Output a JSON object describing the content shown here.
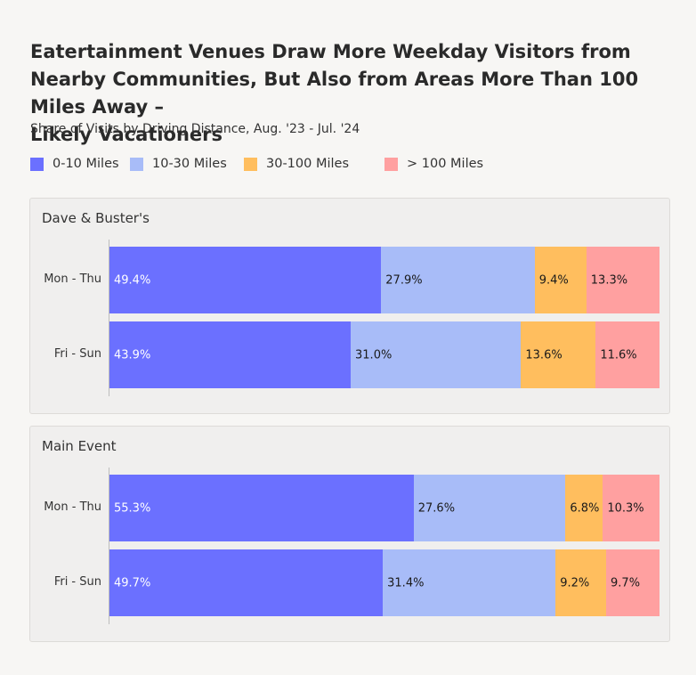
{
  "title": "Eatertainment Venues Draw More Weekday Visitors from Nearby Communities, But Also from Areas More Than 100 Miles Away –\n Likely Vacationers",
  "subtitle": "Share of Visits by Driving Distance, Aug. '23 - Jul. '24",
  "colors": {
    "0-10 Miles": "#6b70ff",
    "10-30 Miles": "#a8bcf8",
    "30-100 Miles": "#ffbe5e",
    "> 100 Miles": "#ffa0a0"
  },
  "chart_data": {
    "type": "bar",
    "stacked": true,
    "orientation": "horizontal",
    "legend": {
      "placement": "top",
      "entries": [
        "0-10 Miles",
        "10-30 Miles",
        "30-100 Miles",
        "> 100 Miles"
      ]
    },
    "panels": [
      {
        "title": "Dave & Buster's",
        "categories": [
          "Mon - Thu",
          "Fri - Sun"
        ],
        "series": [
          {
            "name": "0-10 Miles",
            "values": [
              49.4,
              43.9
            ],
            "labels": [
              "49.4%",
              "43.9%"
            ]
          },
          {
            "name": "10-30 Miles",
            "values": [
              27.9,
              31.0
            ],
            "labels": [
              "27.9%",
              "31.0%"
            ]
          },
          {
            "name": "30-100 Miles",
            "values": [
              9.4,
              13.6
            ],
            "labels": [
              "9.4%",
              "13.6%"
            ]
          },
          {
            "name": "> 100 Miles",
            "values": [
              13.3,
              11.6
            ],
            "labels": [
              "13.3%",
              "11.6%"
            ]
          }
        ]
      },
      {
        "title": "Main Event",
        "categories": [
          "Mon - Thu",
          "Fri - Sun"
        ],
        "series": [
          {
            "name": "0-10 Miles",
            "values": [
              55.3,
              49.7
            ],
            "labels": [
              "55.3%",
              "49.7%"
            ]
          },
          {
            "name": "10-30 Miles",
            "values": [
              27.6,
              31.4
            ],
            "labels": [
              "27.6%",
              "31.4%"
            ]
          },
          {
            "name": "30-100 Miles",
            "values": [
              6.8,
              9.2
            ],
            "labels": [
              "6.8%",
              "9.2%"
            ]
          },
          {
            "name": "> 100 Miles",
            "values": [
              10.3,
              9.7
            ],
            "labels": [
              "10.3%",
              "9.7%"
            ]
          }
        ]
      }
    ]
  }
}
